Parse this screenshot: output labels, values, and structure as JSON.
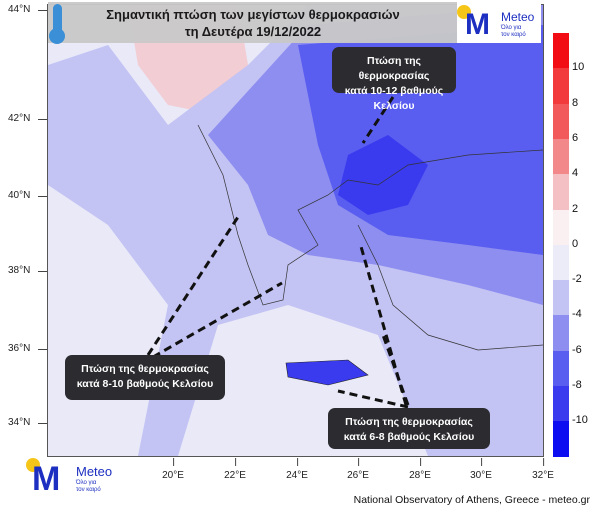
{
  "header": {
    "title_line1": "Σημαντική πτώση των μεγίστων θερμοκρασιών",
    "title_line2": "τη Δευτέρα 19/12/2022"
  },
  "logo": {
    "name": "Meteo",
    "tagline_line1": "Όλο για",
    "tagline_line2": "τον καιρό",
    "brand_color": "#1d2fc0",
    "sun_color": "#f5c518"
  },
  "map": {
    "lat_ticks": [
      "44°N",
      "42°N",
      "40°N",
      "38°N",
      "36°N",
      "34°N"
    ],
    "lon_ticks": [
      "20°E",
      "22°E",
      "24°E",
      "26°E",
      "28°E",
      "30°E",
      "32°E"
    ]
  },
  "colorbar": {
    "labels": [
      "10",
      "8",
      "6",
      "4",
      "2",
      "0",
      "-2",
      "-4",
      "-6",
      "-8",
      "-10"
    ],
    "colors": [
      "#f20d14",
      "#f23a3c",
      "#f2595b",
      "#f2888a",
      "#f5c0c3",
      "#faf0f2",
      "#ececf8",
      "#c3c3f4",
      "#8e8ef0",
      "#5a5ef0",
      "#3a3aee",
      "#0d0df2"
    ]
  },
  "callouts": [
    {
      "line1": "Πτώση της θερμοκρασίας",
      "line2": "κατά 10-12 βαθμούς Κελσίου"
    },
    {
      "line1": "Πτώση της θερμοκρασίας",
      "line2": "κατά 8-10 βαθμούς Κελσίου"
    },
    {
      "line1": "Πτώση της θερμοκρασίας",
      "line2": "κατά 6-8 βαθμούς Κελσίου"
    }
  ],
  "credit": "National Observatory of Athens, Greece - meteo.gr"
}
